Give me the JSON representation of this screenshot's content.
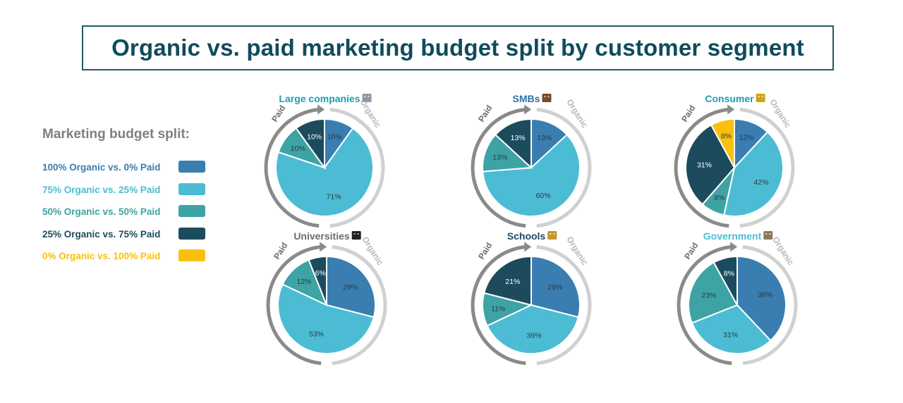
{
  "title": "Organic vs. paid marketing budget split by customer segment",
  "legend": {
    "title": "Marketing budget split:",
    "items": [
      {
        "label": "100% Organic vs. 0% Paid",
        "color": "#3a7db0"
      },
      {
        "label": "75% Organic vs. 25% Paid",
        "color": "#4cbcd4"
      },
      {
        "label": "50% Organic vs. 50% Paid",
        "color": "#3ea3a4"
      },
      {
        "label": "25% Organic vs. 75% Paid",
        "color": "#1c4b5e"
      },
      {
        "label": "0% Organic vs. 100% Paid",
        "color": "#fbbf0f"
      }
    ]
  },
  "arc_labels": {
    "left": "Paid",
    "right": "Organic"
  },
  "chart_data": [
    {
      "type": "pie",
      "title": "Large companies",
      "icon": "office-building-icon",
      "title_color": "#1a9fb0",
      "slices": [
        {
          "category": "100% Organic vs. 0% Paid",
          "value": 10
        },
        {
          "category": "75% Organic vs. 25% Paid",
          "value": 71
        },
        {
          "category": "50% Organic vs. 50% Paid",
          "value": 10
        },
        {
          "category": "25% Organic vs. 75% Paid",
          "value": 10
        }
      ]
    },
    {
      "type": "pie",
      "title": "SMBs",
      "icon": "briefcase-icon",
      "title_color": "#2a74a8",
      "slices": [
        {
          "category": "100% Organic vs. 0% Paid",
          "value": 13
        },
        {
          "category": "75% Organic vs. 25% Paid",
          "value": 60
        },
        {
          "category": "50% Organic vs. 50% Paid",
          "value": 13
        },
        {
          "category": "25% Organic vs. 75% Paid",
          "value": 13
        }
      ]
    },
    {
      "type": "pie",
      "title": "Consumer",
      "icon": "people-icon",
      "title_color": "#1a9fb0",
      "slices": [
        {
          "category": "100% Organic vs. 0% Paid",
          "value": 12
        },
        {
          "category": "75% Organic vs. 25% Paid",
          "value": 42
        },
        {
          "category": "50% Organic vs. 50% Paid",
          "value": 8
        },
        {
          "category": "25% Organic vs. 75% Paid",
          "value": 31
        },
        {
          "category": "0% Organic vs. 100% Paid",
          "value": 8
        }
      ]
    },
    {
      "type": "pie",
      "title": "Universities",
      "icon": "graduation-cap-icon",
      "title_color": "#6b6b6b",
      "slices": [
        {
          "category": "100% Organic vs. 0% Paid",
          "value": 29
        },
        {
          "category": "75% Organic vs. 25% Paid",
          "value": 53
        },
        {
          "category": "50% Organic vs. 50% Paid",
          "value": 12
        },
        {
          "category": "25% Organic vs. 75% Paid",
          "value": 6
        }
      ]
    },
    {
      "type": "pie",
      "title": "Schools",
      "icon": "school-icon",
      "title_color": "#1c4b5e",
      "slices": [
        {
          "category": "100% Organic vs. 0% Paid",
          "value": 29
        },
        {
          "category": "75% Organic vs. 25% Paid",
          "value": 39
        },
        {
          "category": "50% Organic vs. 50% Paid",
          "value": 11
        },
        {
          "category": "25% Organic vs. 75% Paid",
          "value": 21
        }
      ]
    },
    {
      "type": "pie",
      "title": "Government",
      "icon": "government-building-icon",
      "title_color": "#4cbcd4",
      "slices": [
        {
          "category": "100% Organic vs. 0% Paid",
          "value": 38
        },
        {
          "category": "75% Organic vs. 25% Paid",
          "value": 31
        },
        {
          "category": "50% Organic vs. 50% Paid",
          "value": 23
        },
        {
          "category": "25% Organic vs. 75% Paid",
          "value": 8
        }
      ]
    }
  ]
}
